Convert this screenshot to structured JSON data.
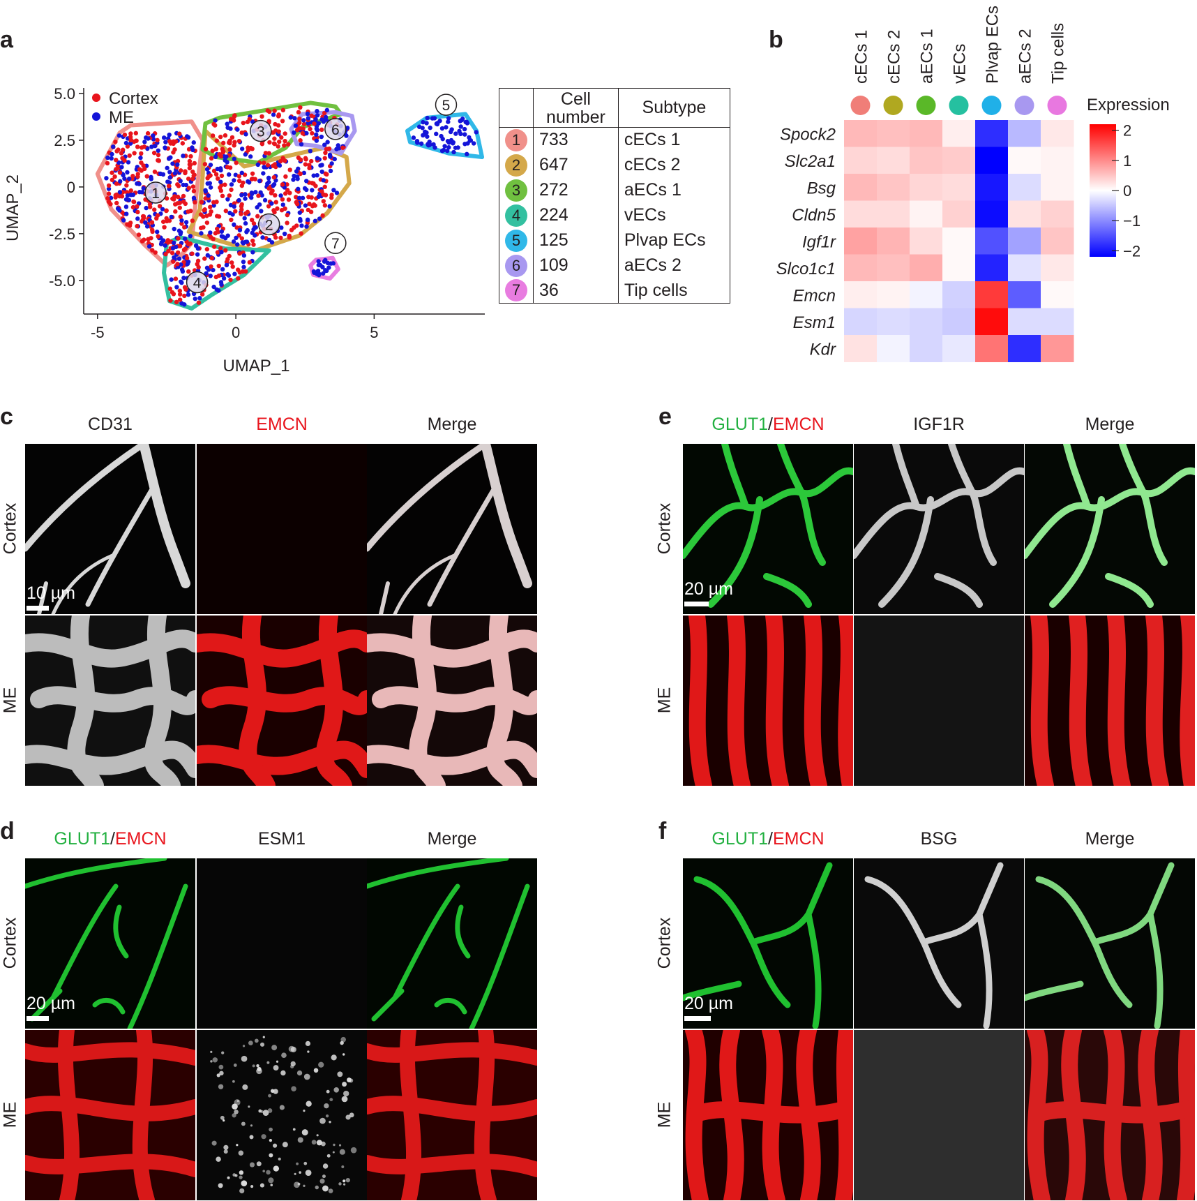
{
  "panel_labels": {
    "a": "a",
    "b": "b",
    "c": "c",
    "d": "d",
    "e": "e",
    "f": "f"
  },
  "chart_data": [
    {
      "type": "scatter",
      "xlabel": "UMAP_1",
      "ylabel": "UMAP_2",
      "xticks": [
        "-5",
        "0",
        "5"
      ],
      "yticks": [
        "5.0",
        "2.5",
        "0",
        "-2.5",
        "-5.0"
      ],
      "xlim": [
        -5.5,
        9
      ],
      "ylim": [
        -6.8,
        5.3
      ],
      "legend": [
        {
          "name": "Cortex",
          "color": "#e8141c"
        },
        {
          "name": "ME",
          "color": "#1414d8"
        }
      ],
      "cluster_ids": [
        "1",
        "2",
        "3",
        "4",
        "5",
        "6",
        "7"
      ],
      "cluster_colors": [
        "#f0908a",
        "#d4a84a",
        "#70c040",
        "#33c0a0",
        "#30b8e8",
        "#a898f0",
        "#e87ce0"
      ],
      "cluster_centers": [
        [
          -2.9,
          -0.3
        ],
        [
          1.2,
          -2.0
        ],
        [
          0.9,
          3.0
        ],
        [
          -1.4,
          -5.1
        ],
        [
          7.6,
          2.6
        ],
        [
          3.6,
          3.1
        ],
        [
          3.1,
          -4.3
        ]
      ]
    },
    {
      "type": "heatmap",
      "columns": [
        "cECs 1",
        "cECs 2",
        "aECs 1",
        "vECs",
        "Plvap ECs",
        "aECs 2",
        "Tip cells"
      ],
      "column_colors": [
        "#f07e78",
        "#b0a820",
        "#5ab828",
        "#25c0a0",
        "#20b0e8",
        "#a898f0",
        "#e878e0"
      ],
      "rows": [
        "Spock2",
        "Slc2a1",
        "Bsg",
        "Cldn5",
        "Igf1r",
        "Slco1c1",
        "Emcn",
        "Esm1",
        "Kdr"
      ],
      "values": [
        [
          0.6,
          0.55,
          0.6,
          0.15,
          -1.8,
          -0.6,
          0.2
        ],
        [
          0.35,
          0.3,
          0.5,
          0.45,
          -2.2,
          0.05,
          0.1
        ],
        [
          0.6,
          0.5,
          0.35,
          0.3,
          -2.0,
          -0.3,
          0.1
        ],
        [
          0.3,
          0.3,
          0.1,
          0.4,
          -2.1,
          0.25,
          0.4
        ],
        [
          0.8,
          0.65,
          0.3,
          0.05,
          -1.5,
          -0.8,
          0.5
        ],
        [
          0.6,
          0.55,
          0.7,
          0.05,
          -1.9,
          -0.25,
          0.2
        ],
        [
          0.15,
          0.1,
          -0.1,
          -0.4,
          1.7,
          -1.4,
          0.05
        ],
        [
          -0.35,
          -0.3,
          -0.35,
          -0.45,
          2.1,
          -0.3,
          -0.3
        ],
        [
          0.25,
          -0.1,
          -0.35,
          -0.2,
          1.2,
          -1.8,
          0.9
        ]
      ],
      "colorbar": {
        "title": "Expression",
        "ticks": [
          "2",
          "1",
          "0",
          "−1",
          "−2"
        ],
        "range": [
          -2.2,
          2.2
        ]
      }
    }
  ],
  "table": {
    "headers": [
      "Cell\nnumber",
      "Subtype"
    ],
    "rows": [
      {
        "id": "1",
        "count": "733",
        "subtype": "cECs 1"
      },
      {
        "id": "2",
        "count": "647",
        "subtype": "cECs 2"
      },
      {
        "id": "3",
        "count": "272",
        "subtype": "aECs 1"
      },
      {
        "id": "4",
        "count": "224",
        "subtype": "vECs"
      },
      {
        "id": "5",
        "count": "125",
        "subtype": "Plvap ECs"
      },
      {
        "id": "6",
        "count": "109",
        "subtype": "aECs 2"
      },
      {
        "id": "7",
        "count": "36",
        "subtype": "Tip cells"
      }
    ]
  },
  "micro": {
    "c": {
      "headers": [
        "CD31",
        "EMCN",
        "Merge"
      ],
      "header_colors": [
        "#231f20",
        "#e8141c",
        "#231f20"
      ],
      "rows": [
        "Cortex",
        "ME"
      ],
      "scale": "10 µm"
    },
    "d": {
      "header1_a": "GLUT1",
      "header1_sep": "/",
      "header1_b": "EMCN",
      "headers": [
        "ESM1",
        "Merge"
      ],
      "rows": [
        "Cortex",
        "ME"
      ],
      "scale": "20 µm"
    },
    "e": {
      "header1_a": "GLUT1",
      "header1_sep": "/",
      "header1_b": "EMCN",
      "headers": [
        "IGF1R",
        "Merge"
      ],
      "rows": [
        "Cortex",
        "ME"
      ],
      "scale": "20 µm"
    },
    "f": {
      "header1_a": "GLUT1",
      "header1_sep": "/",
      "header1_b": "EMCN",
      "headers": [
        "BSG",
        "Merge"
      ],
      "rows": [
        "Cortex",
        "ME"
      ],
      "scale": "20 µm"
    }
  }
}
